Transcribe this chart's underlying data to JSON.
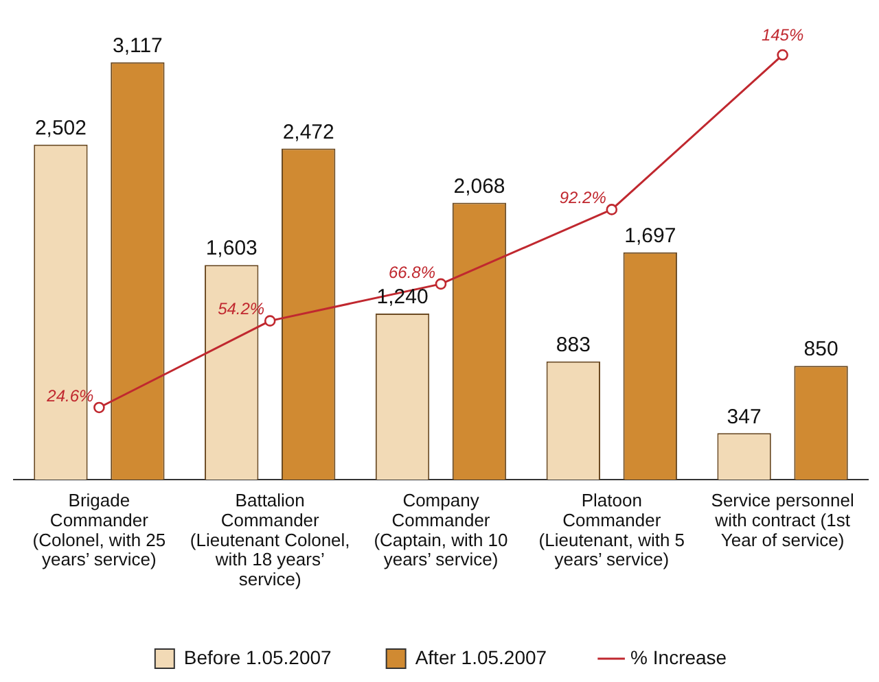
{
  "chart_data": {
    "type": "bar",
    "categories": [
      "Brigade Commander (Colonel, with 25 years’ service)",
      "Battalion Commander (Lieutenant Colonel, with 18 years’ service)",
      "Company Commander (Captain, with 10 years’ service)",
      "Platoon Commander (Lieutenant, with 5 years’ service)",
      "Service personnel with contract (1st Year of service)"
    ],
    "series": [
      {
        "name": "Before 1.05.2007",
        "color": "#f2dab6",
        "values": [
          2502,
          1603,
          1240,
          883,
          347
        ],
        "value_labels": [
          "2,502",
          "1,603",
          "1,240",
          "883",
          "347"
        ]
      },
      {
        "name": "After 1.05.2007",
        "color": "#d08a32",
        "values": [
          3117,
          2472,
          2068,
          1697,
          850
        ],
        "value_labels": [
          "3,117",
          "2,472",
          "2,068",
          "1,697",
          "850"
        ]
      },
      {
        "name": "% Increase",
        "type": "line",
        "axis": "y2",
        "color": "#c0282f",
        "marker": "circle",
        "values": [
          24.6,
          54.2,
          66.8,
          92.2,
          145
        ],
        "value_labels": [
          "24.6%",
          "54.2%",
          "66.8%",
          "92.2%",
          "145%"
        ]
      }
    ],
    "tick_labels": "x",
    "grid": false,
    "legend": "bottom"
  }
}
